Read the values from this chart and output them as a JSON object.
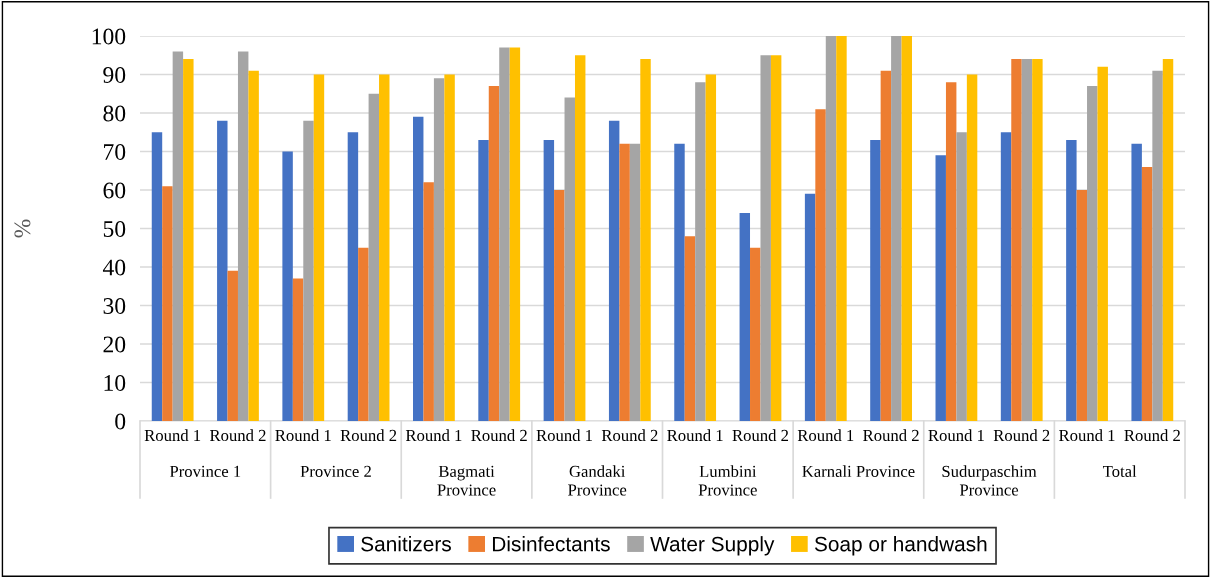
{
  "chart_data": {
    "type": "bar",
    "ylabel": "%",
    "categories": [
      "Round 1",
      "Round 2",
      "Round 1",
      "Round 2",
      "Round 1",
      "Round 2",
      "Round 1",
      "Round 2",
      "Round 1",
      "Round 2",
      "Round 1",
      "Round 2",
      "Round 1",
      "Round 2",
      "Round 1",
      "Round 2"
    ],
    "series": [
      {
        "name": "Sanitizers",
        "color": "#4472c4",
        "values": [
          75,
          78,
          70,
          75,
          79,
          73,
          73,
          78,
          72,
          54,
          59,
          73,
          69,
          75,
          73,
          72
        ]
      },
      {
        "name": "Disinfectants",
        "color": "#ed7d31",
        "values": [
          61,
          39,
          37,
          45,
          62,
          87,
          60,
          72,
          48,
          45,
          81,
          91,
          88,
          94,
          60,
          66
        ]
      },
      {
        "name": "Water Supply",
        "color": "#a5a5a5",
        "values": [
          96,
          96,
          78,
          85,
          89,
          97,
          84,
          72,
          88,
          95,
          100,
          100,
          75,
          94,
          87,
          91
        ]
      },
      {
        "name": "Soap or handwash",
        "color": "#ffc000",
        "values": [
          94,
          91,
          90,
          90,
          90,
          97,
          95,
          94,
          90,
          95,
          100,
          100,
          90,
          94,
          92,
          94
        ]
      }
    ],
    "annotations": [
      "Province 1",
      "Province 2",
      "Bagmati\nProvince",
      "Gandaki\nProvince",
      "Lumbini\nProvince",
      "Karnali Province",
      "Sudurpaschim\nProvince",
      "Total"
    ],
    "ylim": [
      0,
      100
    ],
    "yticks": [
      0,
      10,
      20,
      30,
      40,
      50,
      60,
      70,
      80,
      90,
      100
    ],
    "grid": "y",
    "legend": "bottom"
  }
}
